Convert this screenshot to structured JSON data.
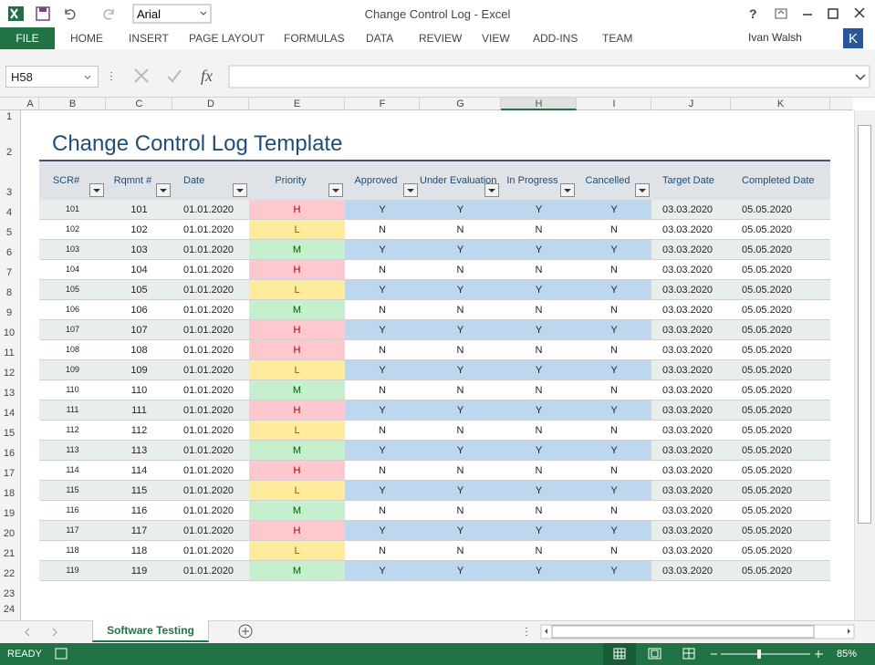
{
  "window": {
    "title": "Change Control Log - Excel",
    "help": "?",
    "font_name": "Arial",
    "user": "Ivan Walsh",
    "user_badge": "K"
  },
  "ribbon_tabs": [
    "FILE",
    "HOME",
    "INSERT",
    "PAGE LAYOUT",
    "FORMULAS",
    "DATA",
    "REVIEW",
    "VIEW",
    "ADD-INS",
    "TEAM"
  ],
  "formula_bar": {
    "name_box": "H58",
    "fx": "fx"
  },
  "column_headers": [
    "A",
    "B",
    "C",
    "D",
    "E",
    "F",
    "G",
    "H",
    "I",
    "J",
    "K"
  ],
  "row_headers": [
    1,
    2,
    3,
    4,
    5,
    6,
    7,
    8,
    9,
    10,
    11,
    12,
    13,
    14,
    15,
    16,
    17,
    18,
    19,
    20,
    21,
    22,
    23,
    24
  ],
  "sheet": {
    "title": "Change Control Log Template",
    "table": {
      "headers": [
        "SCR#",
        "Rqmnt #",
        "Date",
        "Priority",
        "Approved",
        "Under Evaluation",
        "In Progress",
        "Cancelled",
        "Target Date",
        "Completed Date"
      ],
      "rows": [
        [
          "101",
          "101",
          "01.01.2020",
          "H",
          "Y",
          "Y",
          "Y",
          "Y",
          "03.03.2020",
          "05.05.2020"
        ],
        [
          "102",
          "102",
          "01.01.2020",
          "L",
          "N",
          "N",
          "N",
          "N",
          "03.03.2020",
          "05.05.2020"
        ],
        [
          "103",
          "103",
          "01.01.2020",
          "M",
          "Y",
          "Y",
          "Y",
          "Y",
          "03.03.2020",
          "05.05.2020"
        ],
        [
          "104",
          "104",
          "01.01.2020",
          "H",
          "N",
          "N",
          "N",
          "N",
          "03.03.2020",
          "05.05.2020"
        ],
        [
          "105",
          "105",
          "01.01.2020",
          "L",
          "Y",
          "Y",
          "Y",
          "Y",
          "03.03.2020",
          "05.05.2020"
        ],
        [
          "106",
          "106",
          "01.01.2020",
          "M",
          "N",
          "N",
          "N",
          "N",
          "03.03.2020",
          "05.05.2020"
        ],
        [
          "107",
          "107",
          "01.01.2020",
          "H",
          "Y",
          "Y",
          "Y",
          "Y",
          "03.03.2020",
          "05.05.2020"
        ],
        [
          "108",
          "108",
          "01.01.2020",
          "H",
          "N",
          "N",
          "N",
          "N",
          "03.03.2020",
          "05.05.2020"
        ],
        [
          "109",
          "109",
          "01.01.2020",
          "L",
          "Y",
          "Y",
          "Y",
          "Y",
          "03.03.2020",
          "05.05.2020"
        ],
        [
          "110",
          "110",
          "01.01.2020",
          "M",
          "N",
          "N",
          "N",
          "N",
          "03.03.2020",
          "05.05.2020"
        ],
        [
          "111",
          "111",
          "01.01.2020",
          "H",
          "Y",
          "Y",
          "Y",
          "Y",
          "03.03.2020",
          "05.05.2020"
        ],
        [
          "112",
          "112",
          "01.01.2020",
          "L",
          "N",
          "N",
          "N",
          "N",
          "03.03.2020",
          "05.05.2020"
        ],
        [
          "113",
          "113",
          "01.01.2020",
          "M",
          "Y",
          "Y",
          "Y",
          "Y",
          "03.03.2020",
          "05.05.2020"
        ],
        [
          "114",
          "114",
          "01.01.2020",
          "H",
          "N",
          "N",
          "N",
          "N",
          "03.03.2020",
          "05.05.2020"
        ],
        [
          "115",
          "115",
          "01.01.2020",
          "L",
          "Y",
          "Y",
          "Y",
          "Y",
          "03.03.2020",
          "05.05.2020"
        ],
        [
          "116",
          "116",
          "01.01.2020",
          "M",
          "N",
          "N",
          "N",
          "N",
          "03.03.2020",
          "05.05.2020"
        ],
        [
          "117",
          "117",
          "01.01.2020",
          "H",
          "Y",
          "Y",
          "Y",
          "Y",
          "03.03.2020",
          "05.05.2020"
        ],
        [
          "118",
          "118",
          "01.01.2020",
          "L",
          "N",
          "N",
          "N",
          "N",
          "03.03.2020",
          "05.05.2020"
        ],
        [
          "119",
          "119",
          "01.01.2020",
          "M",
          "Y",
          "Y",
          "Y",
          "Y",
          "03.03.2020",
          "05.05.2020"
        ]
      ]
    }
  },
  "sheet_tabs": [
    "Software Testing"
  ],
  "status_bar": {
    "mode": "READY",
    "zoom": "85%"
  }
}
